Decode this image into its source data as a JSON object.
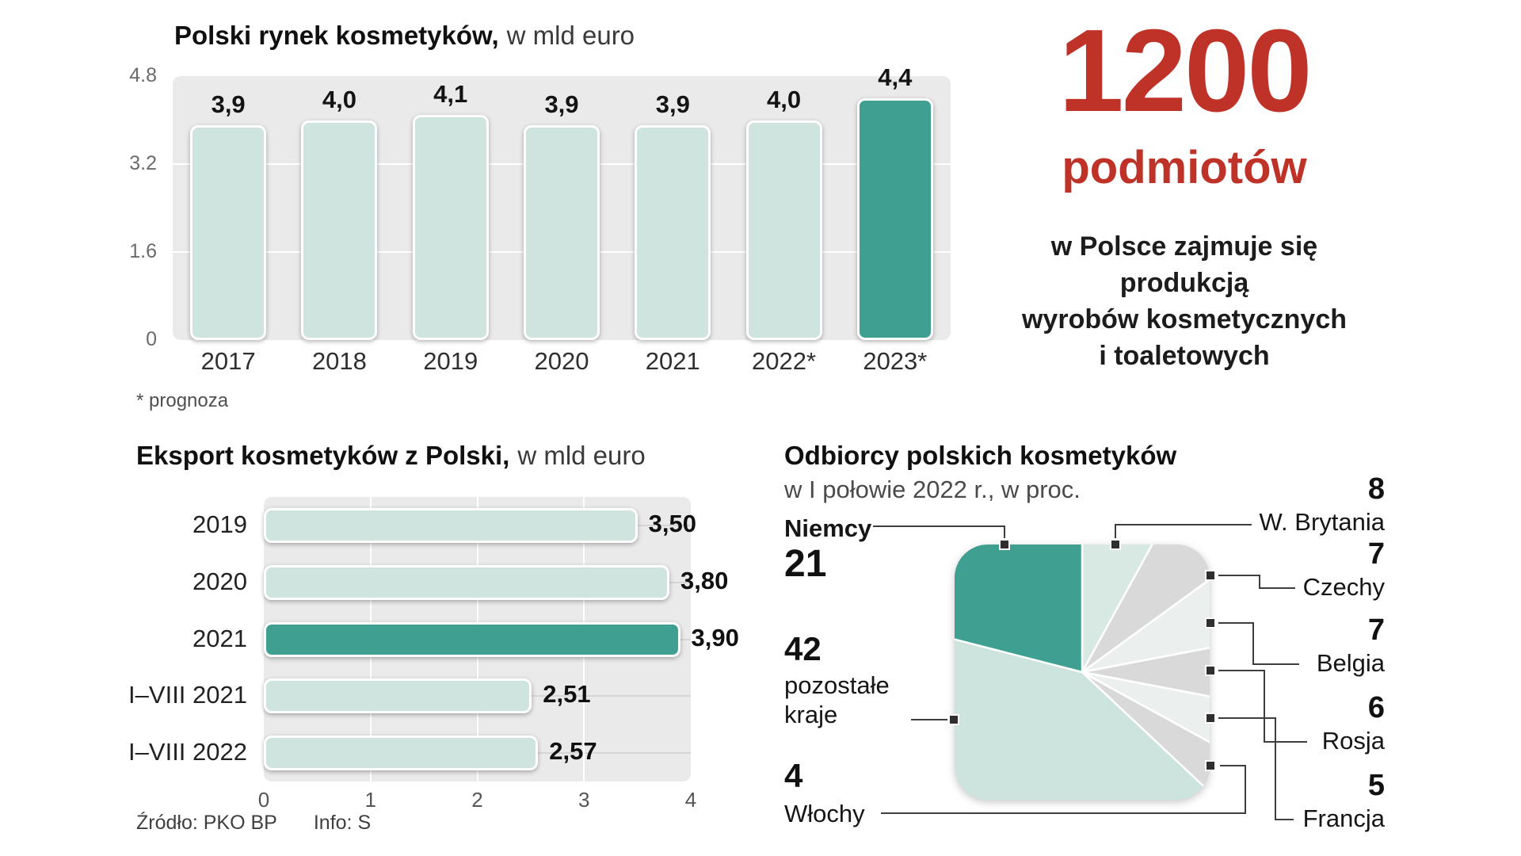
{
  "colors": {
    "accent_teal": "#3fa092",
    "bar_fill": "#cfe4df",
    "plot_bg": "#eaeaea",
    "red": "#bf3228",
    "slice_gray": "#d9d9d9",
    "slice_pale": "#ebf0ee",
    "slice_rest": "#cde3dd"
  },
  "highlight": {
    "number": "1200",
    "word": "podmiotów",
    "lines": [
      "w Polsce zajmuje się",
      "produkcją",
      "wyrobów kosmetycznych",
      "i toaletowych"
    ]
  },
  "chart_data": [
    {
      "type": "bar",
      "title": "Polski rynek kosmetyków,",
      "subtitle": "w mld euro",
      "categories": [
        "2017",
        "2018",
        "2019",
        "2020",
        "2021",
        "2022*",
        "2023*"
      ],
      "values": [
        3.9,
        4.0,
        4.1,
        3.9,
        3.9,
        4.0,
        4.4
      ],
      "value_labels": [
        "3,9",
        "4,0",
        "4,1",
        "3,9",
        "3,9",
        "4,0",
        "4,4"
      ],
      "highlight_index": 6,
      "ylim": [
        0,
        4.8
      ],
      "y_ticks": [
        4.8,
        3.2,
        1.6,
        0
      ],
      "grid": true,
      "legend": "none",
      "footnote": "* prognoza"
    },
    {
      "type": "bar-horizontal",
      "title": "Eksport kosmetyków z Polski,",
      "subtitle": "w mld euro",
      "categories": [
        "2019",
        "2020",
        "2021",
        "I–VIII 2021",
        "I–VIII 2022"
      ],
      "values": [
        3.5,
        3.8,
        3.9,
        2.51,
        2.57
      ],
      "value_labels": [
        "3,50",
        "3,80",
        "3,90",
        "2,51",
        "2,57"
      ],
      "highlight_index": 2,
      "xlim": [
        0,
        4
      ],
      "x_ticks": [
        0,
        1,
        2,
        3,
        4
      ],
      "grid": true,
      "legend": "none",
      "source": "Źródło: PKO BP",
      "info": "Info: S"
    },
    {
      "type": "pie",
      "title": "Odbiorcy polskich kosmetyków",
      "subtitle": "w I połowie 2022 r., w proc.",
      "direction": "clockwise",
      "start_angle_deg": 0,
      "slices": [
        {
          "label": "W. Brytania",
          "value": 8,
          "color": "#d8e8e3"
        },
        {
          "label": "Czechy",
          "value": 7,
          "color": "#d9d9d9"
        },
        {
          "label": "Belgia",
          "value": 7,
          "color": "#ebf0ee"
        },
        {
          "label": "Rosja",
          "value": 6,
          "color": "#d9d9d9"
        },
        {
          "label": "Francja",
          "value": 5,
          "color": "#ebf0ee"
        },
        {
          "label": "Włochy",
          "value": 4,
          "color": "#d9d9d9"
        },
        {
          "label": "pozostałe kraje",
          "value": 42,
          "color": "#cde3dd"
        },
        {
          "label": "Niemcy",
          "value": 21,
          "color": "#3fa092"
        }
      ]
    }
  ]
}
